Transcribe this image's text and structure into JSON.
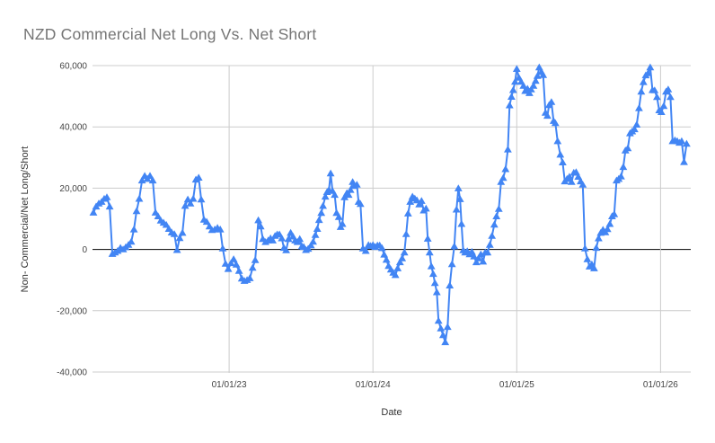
{
  "title": "NZD Commercial Net Long Vs. Net Short",
  "colors": {
    "series": "#4285f4",
    "grid": "#cccccc",
    "zero_line": "#000000",
    "title_text": "#757575",
    "tick_text": "#444444",
    "axis_title_text": "#333333",
    "background": "#ffffff"
  },
  "chart_data": {
    "type": "line",
    "title": "NZD Commercial Net Long Vs. Net Short",
    "xlabel": "Date",
    "ylabel": "Non- Commercial/Net Long/Short",
    "marker": "triangle-up",
    "grid": true,
    "legend": "none",
    "ylim": [
      -40000,
      60000
    ],
    "x_axis": {
      "min": 2022.05,
      "max": 2026.21,
      "ticks": [
        {
          "value": 2023,
          "label": "01/01/23"
        },
        {
          "value": 2024,
          "label": "01/01/24"
        },
        {
          "value": 2025,
          "label": "01/01/25"
        },
        {
          "value": 2026,
          "label": "01/01/26"
        }
      ]
    },
    "y_axis": {
      "min": -40000,
      "max": 60000,
      "ticks": [
        {
          "value": 60000,
          "label": "60,000"
        },
        {
          "value": 40000,
          "label": "40,000"
        },
        {
          "value": 20000,
          "label": "20,000"
        },
        {
          "value": 0,
          "label": "0"
        },
        {
          "value": -20000,
          "label": "-20,000"
        },
        {
          "value": -40000,
          "label": "-40,000"
        }
      ]
    },
    "points": [
      [
        2022.056,
        12000
      ],
      [
        2022.075,
        14000
      ],
      [
        2022.094,
        15000
      ],
      [
        2022.113,
        15500
      ],
      [
        2022.131,
        16500
      ],
      [
        2022.15,
        17000
      ],
      [
        2022.169,
        14000
      ],
      [
        2022.188,
        -1500
      ],
      [
        2022.206,
        -1000
      ],
      [
        2022.225,
        -500
      ],
      [
        2022.244,
        500
      ],
      [
        2022.263,
        0
      ],
      [
        2022.281,
        700
      ],
      [
        2022.3,
        1500
      ],
      [
        2022.319,
        2500
      ],
      [
        2022.338,
        6500
      ],
      [
        2022.356,
        12500
      ],
      [
        2022.375,
        16500
      ],
      [
        2022.394,
        22500
      ],
      [
        2022.413,
        24000
      ],
      [
        2022.431,
        23000
      ],
      [
        2022.45,
        24000
      ],
      [
        2022.469,
        22500
      ],
      [
        2022.488,
        12000
      ],
      [
        2022.506,
        10800
      ],
      [
        2022.525,
        9400
      ],
      [
        2022.544,
        8700
      ],
      [
        2022.563,
        8000
      ],
      [
        2022.581,
        6700
      ],
      [
        2022.6,
        5500
      ],
      [
        2022.619,
        5000
      ],
      [
        2022.638,
        -200
      ],
      [
        2022.656,
        3700
      ],
      [
        2022.675,
        5400
      ],
      [
        2022.694,
        14200
      ],
      [
        2022.713,
        16300
      ],
      [
        2022.731,
        15000
      ],
      [
        2022.75,
        16500
      ],
      [
        2022.769,
        22800
      ],
      [
        2022.788,
        23400
      ],
      [
        2022.806,
        16300
      ],
      [
        2022.825,
        9700
      ],
      [
        2022.844,
        9000
      ],
      [
        2022.863,
        7500
      ],
      [
        2022.881,
        6300
      ],
      [
        2022.9,
        6500
      ],
      [
        2022.919,
        7000
      ],
      [
        2022.938,
        6500
      ],
      [
        2022.956,
        300
      ],
      [
        2022.975,
        -4700
      ],
      [
        2022.994,
        -6400
      ],
      [
        2023.013,
        -4500
      ],
      [
        2023.031,
        -3200
      ],
      [
        2023.05,
        -5000
      ],
      [
        2023.069,
        -7000
      ],
      [
        2023.088,
        -9500
      ],
      [
        2023.106,
        -10300
      ],
      [
        2023.125,
        -10000
      ],
      [
        2023.144,
        -9400
      ],
      [
        2023.163,
        -6000
      ],
      [
        2023.181,
        -3500
      ],
      [
        2023.203,
        9500
      ],
      [
        2023.219,
        7500
      ],
      [
        2023.234,
        3400
      ],
      [
        2023.253,
        2400
      ],
      [
        2023.272,
        2900
      ],
      [
        2023.288,
        3600
      ],
      [
        2023.303,
        2900
      ],
      [
        2023.319,
        4400
      ],
      [
        2023.334,
        4900
      ],
      [
        2023.35,
        4900
      ],
      [
        2023.366,
        3600
      ],
      [
        2023.381,
        500
      ],
      [
        2023.397,
        -300
      ],
      [
        2023.413,
        3400
      ],
      [
        2023.428,
        5400
      ],
      [
        2023.444,
        4200
      ],
      [
        2023.459,
        2900
      ],
      [
        2023.475,
        2400
      ],
      [
        2023.491,
        3400
      ],
      [
        2023.506,
        1000
      ],
      [
        2023.519,
        800
      ],
      [
        2023.534,
        -200
      ],
      [
        2023.55,
        200
      ],
      [
        2023.569,
        1300
      ],
      [
        2023.584,
        2500
      ],
      [
        2023.6,
        4700
      ],
      [
        2023.613,
        6700
      ],
      [
        2023.625,
        9600
      ],
      [
        2023.641,
        11900
      ],
      [
        2023.653,
        14200
      ],
      [
        2023.669,
        17200
      ],
      [
        2023.681,
        18700
      ],
      [
        2023.694,
        19400
      ],
      [
        2023.706,
        24800
      ],
      [
        2023.719,
        19100
      ],
      [
        2023.734,
        17800
      ],
      [
        2023.747,
        11900
      ],
      [
        2023.763,
        10600
      ],
      [
        2023.775,
        7300
      ],
      [
        2023.788,
        8300
      ],
      [
        2023.803,
        17000
      ],
      [
        2023.819,
        18400
      ],
      [
        2023.831,
        17800
      ],
      [
        2023.844,
        19400
      ],
      [
        2023.859,
        22000
      ],
      [
        2023.872,
        20700
      ],
      [
        2023.888,
        21100
      ],
      [
        2023.9,
        15500
      ],
      [
        2023.913,
        14800
      ],
      [
        2023.931,
        300
      ],
      [
        2023.95,
        -500
      ],
      [
        2023.969,
        1400
      ],
      [
        2023.984,
        1100
      ],
      [
        2024.0,
        1400
      ],
      [
        2024.016,
        800
      ],
      [
        2024.031,
        1300
      ],
      [
        2024.047,
        1300
      ],
      [
        2024.063,
        400
      ],
      [
        2024.078,
        -1700
      ],
      [
        2024.094,
        -3400
      ],
      [
        2024.109,
        -5400
      ],
      [
        2024.125,
        -6600
      ],
      [
        2024.141,
        -7600
      ],
      [
        2024.156,
        -8400
      ],
      [
        2024.172,
        -6200
      ],
      [
        2024.188,
        -4200
      ],
      [
        2024.203,
        -2900
      ],
      [
        2024.219,
        -1000
      ],
      [
        2024.231,
        5000
      ],
      [
        2024.244,
        11700
      ],
      [
        2024.259,
        15500
      ],
      [
        2024.275,
        17200
      ],
      [
        2024.291,
        16600
      ],
      [
        2024.306,
        16000
      ],
      [
        2024.322,
        14700
      ],
      [
        2024.338,
        15800
      ],
      [
        2024.353,
        12700
      ],
      [
        2024.369,
        13300
      ],
      [
        2024.381,
        3500
      ],
      [
        2024.394,
        -1000
      ],
      [
        2024.406,
        -5500
      ],
      [
        2024.419,
        -8000
      ],
      [
        2024.431,
        -11000
      ],
      [
        2024.444,
        -14000
      ],
      [
        2024.456,
        -23300
      ],
      [
        2024.472,
        -25800
      ],
      [
        2024.488,
        -28000
      ],
      [
        2024.503,
        -30300
      ],
      [
        2024.519,
        -25300
      ],
      [
        2024.534,
        -11800
      ],
      [
        2024.55,
        -4800
      ],
      [
        2024.566,
        1000
      ],
      [
        2024.581,
        13000
      ],
      [
        2024.594,
        19900
      ],
      [
        2024.606,
        16400
      ],
      [
        2024.616,
        8300
      ],
      [
        2024.628,
        -300
      ],
      [
        2024.641,
        -1000
      ],
      [
        2024.656,
        -600
      ],
      [
        2024.672,
        -1600
      ],
      [
        2024.688,
        -800
      ],
      [
        2024.703,
        -2300
      ],
      [
        2024.719,
        -4200
      ],
      [
        2024.734,
        -2900
      ],
      [
        2024.75,
        -1600
      ],
      [
        2024.766,
        -4000
      ],
      [
        2024.781,
        -1000
      ],
      [
        2024.797,
        -1000
      ],
      [
        2024.813,
        1500
      ],
      [
        2024.828,
        4400
      ],
      [
        2024.844,
        8100
      ],
      [
        2024.859,
        10800
      ],
      [
        2024.875,
        13200
      ],
      [
        2024.891,
        22000
      ],
      [
        2024.906,
        23300
      ],
      [
        2024.922,
        26200
      ],
      [
        2024.938,
        32600
      ],
      [
        2024.95,
        47000
      ],
      [
        2024.963,
        49800
      ],
      [
        2024.975,
        52000
      ],
      [
        2024.988,
        54700
      ],
      [
        2025.0,
        58900
      ],
      [
        2025.016,
        56000
      ],
      [
        2025.031,
        54700
      ],
      [
        2025.047,
        53400
      ],
      [
        2025.059,
        51700
      ],
      [
        2025.075,
        52400
      ],
      [
        2025.088,
        51000
      ],
      [
        2025.1,
        52200
      ],
      [
        2025.116,
        53400
      ],
      [
        2025.131,
        55000
      ],
      [
        2025.144,
        56600
      ],
      [
        2025.156,
        59400
      ],
      [
        2025.172,
        57900
      ],
      [
        2025.184,
        56900
      ],
      [
        2025.2,
        44600
      ],
      [
        2025.213,
        43600
      ],
      [
        2025.225,
        47100
      ],
      [
        2025.241,
        48100
      ],
      [
        2025.256,
        41900
      ],
      [
        2025.269,
        41200
      ],
      [
        2025.284,
        35300
      ],
      [
        2025.303,
        30900
      ],
      [
        2025.319,
        28400
      ],
      [
        2025.334,
        22200
      ],
      [
        2025.35,
        23000
      ],
      [
        2025.366,
        23700
      ],
      [
        2025.381,
        22000
      ],
      [
        2025.397,
        25000
      ],
      [
        2025.413,
        25200
      ],
      [
        2025.428,
        23700
      ],
      [
        2025.444,
        22200
      ],
      [
        2025.459,
        21100
      ],
      [
        2025.475,
        300
      ],
      [
        2025.491,
        -3200
      ],
      [
        2025.506,
        -5600
      ],
      [
        2025.522,
        -4900
      ],
      [
        2025.538,
        -6200
      ],
      [
        2025.553,
        500
      ],
      [
        2025.569,
        3600
      ],
      [
        2025.584,
        5400
      ],
      [
        2025.6,
        6400
      ],
      [
        2025.616,
        5600
      ],
      [
        2025.631,
        6600
      ],
      [
        2025.647,
        8300
      ],
      [
        2025.663,
        10800
      ],
      [
        2025.678,
        11500
      ],
      [
        2025.694,
        22500
      ],
      [
        2025.709,
        23000
      ],
      [
        2025.725,
        23800
      ],
      [
        2025.741,
        26900
      ],
      [
        2025.756,
        32300
      ],
      [
        2025.772,
        33000
      ],
      [
        2025.788,
        37900
      ],
      [
        2025.803,
        38500
      ],
      [
        2025.819,
        39200
      ],
      [
        2025.834,
        40700
      ],
      [
        2025.85,
        46100
      ],
      [
        2025.866,
        51500
      ],
      [
        2025.881,
        54600
      ],
      [
        2025.897,
        56800
      ],
      [
        2025.913,
        57500
      ],
      [
        2025.928,
        59400
      ],
      [
        2025.944,
        52000
      ],
      [
        2025.959,
        51900
      ],
      [
        2025.975,
        49700
      ],
      [
        2025.991,
        45400
      ],
      [
        2026.006,
        44800
      ],
      [
        2026.022,
        46800
      ],
      [
        2026.038,
        51500
      ],
      [
        2026.053,
        52200
      ],
      [
        2026.069,
        49700
      ],
      [
        2026.084,
        35300
      ],
      [
        2026.1,
        35600
      ],
      [
        2026.116,
        35300
      ],
      [
        2026.131,
        34800
      ],
      [
        2026.147,
        35300
      ],
      [
        2026.163,
        28500
      ],
      [
        2026.181,
        34500
      ]
    ]
  }
}
